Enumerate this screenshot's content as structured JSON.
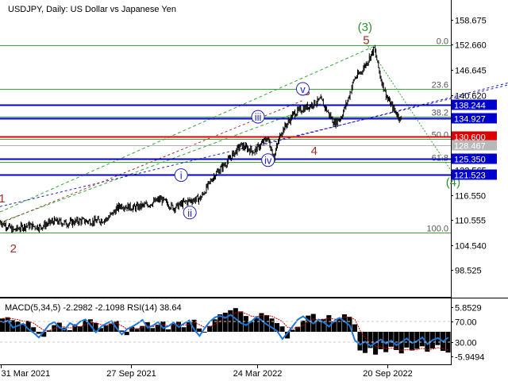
{
  "header": {
    "title": "USDJPY, Daily:  US Dollar vs Japanese Yen"
  },
  "colors": {
    "candle": "#000000",
    "grid": "#c8c8c8",
    "blue_level": "#0000cc",
    "red_level": "#dd0000",
    "fib_line": "#33aa33",
    "wave_green": "#2f8f2f",
    "wave_red": "#a0302a",
    "wave_blue": "#2020c0",
    "macd_hist": "#000000",
    "macd_signal": "#cc0000",
    "rsi_line": "#1e78dc"
  },
  "chart_data": [
    {
      "type": "line",
      "title": "USDJPY, Daily:  US Dollar vs Japanese Yen",
      "symbol": "USDJPY",
      "timeframe": "Daily",
      "y_ticks": [
        "158.675",
        "152.660",
        "146.645",
        "140.620",
        "134.605",
        "128.580",
        "122.565",
        "116.550",
        "110.555",
        "104.540",
        "98.525"
      ],
      "ylim": [
        92.5,
        161.5
      ],
      "x_ticks": [
        "31 Mar 2021",
        "27 Sep 2021",
        "24 Mar 2022",
        "20 Sep 2022"
      ],
      "grid": false,
      "series": [
        {
          "x": [
            0,
            20,
            40,
            60,
            80,
            100,
            120,
            140,
            160,
            180,
            200,
            220,
            240,
            260,
            280,
            300,
            320,
            340,
            360,
            380,
            400,
            410,
            420,
            440,
            460,
            480,
            500,
            510,
            520,
            530,
            540,
            550,
            560,
            570,
            580,
            590,
            600
          ],
          "values": [
            110.2,
            108.1,
            109.3,
            108.9,
            110.3,
            109.8,
            110.4,
            110.2,
            110.8,
            114.1,
            113.5,
            114.2,
            115.6,
            113.5,
            115.1,
            115.8,
            121.2,
            124.6,
            128.5,
            127.0,
            130.3,
            125.8,
            131.5,
            136.2,
            137.8,
            139.4,
            133.8,
            135.2,
            139.2,
            144.5,
            146.1,
            148.8,
            151.8,
            144.3,
            139.6,
            136.9,
            134.6
          ]
        }
      ],
      "levels": [
        {
          "value": 138.244,
          "label": "138.244",
          "color": "blue"
        },
        {
          "value": 134.927,
          "label": "134.927",
          "color": "blue"
        },
        {
          "value": 130.6,
          "label": "130.600",
          "color": "red"
        },
        {
          "value": 128.467,
          "label": "128.467",
          "color": "gray"
        },
        {
          "value": 125.35,
          "label": "125.350",
          "color": "blue"
        },
        {
          "value": 121.523,
          "label": "121.523",
          "color": "blue"
        }
      ],
      "fibonacci": [
        {
          "label": "0.0",
          "value": 152.6
        },
        {
          "label": "23.6",
          "value": 142.0
        },
        {
          "label": "38.2",
          "value": 135.3
        },
        {
          "label": "50.0",
          "value": 130.0
        },
        {
          "label": "61.8",
          "value": 124.6
        },
        {
          "label": "100.0",
          "value": 107.6
        }
      ],
      "wave_labels": [
        {
          "text": "(3)",
          "x": 546,
          "y": 156.0,
          "style": "green"
        },
        {
          "text": "5",
          "x": 548,
          "y": 152.8,
          "style": "red"
        },
        {
          "text": "3",
          "x": 459,
          "y": 140.5,
          "style": "red"
        },
        {
          "text": "4",
          "x": 470,
          "y": 126.2,
          "style": "red"
        },
        {
          "text": "2",
          "x": 20,
          "y": 102.8,
          "style": "red"
        },
        {
          "text": "1",
          "x": 3,
          "y": 114.8,
          "style": "red"
        },
        {
          "text": "(4)",
          "x": 678,
          "y": 118.7,
          "style": "green"
        },
        {
          "text": "i",
          "x": 271,
          "y": 120.6,
          "style": "blue"
        },
        {
          "text": "ii",
          "x": 284,
          "y": 111.6,
          "style": "blue"
        },
        {
          "text": "iii",
          "x": 386,
          "y": 134.6,
          "style": "blue"
        },
        {
          "text": "iv",
          "x": 401,
          "y": 124.2,
          "style": "blue"
        },
        {
          "text": "v",
          "x": 453,
          "y": 141.3,
          "style": "blue"
        }
      ],
      "trend_lines": [
        {
          "from": [
            0,
            112.5
          ],
          "to": [
            560,
            152.3
          ],
          "style": "green-dash"
        },
        {
          "from": [
            0,
            110.0
          ],
          "to": [
            480,
            138.5
          ],
          "style": "green-dash"
        },
        {
          "from": [
            0,
            113.8
          ],
          "to": [
            760,
            143.0
          ],
          "style": "blue-dash"
        },
        {
          "from": [
            0,
            109.8
          ],
          "to": [
            452,
            139.2
          ],
          "style": "red-dash"
        },
        {
          "from": [
            390,
            128.5
          ],
          "to": [
            760,
            143.5
          ],
          "style": "blue-dash"
        },
        {
          "from": [
            548,
            153.0
          ],
          "to": [
            680,
            121.2
          ],
          "style": "green-dot"
        }
      ]
    },
    {
      "type": "bar",
      "title": "MACD(5,34,5) -2.2982 -2.1098 RSI(14) 38.64",
      "indicator": "MACD(5,34,5)",
      "macd_value": "-2.2982",
      "signal_value": "-2.1098",
      "rsi_label": "RSI(14)",
      "rsi_value": "38.64",
      "y_ticks_left": [
        "5.8529",
        "-5.9494"
      ],
      "y_ticks_right": [
        "70.00",
        "30.00"
      ],
      "ylim": [
        -6.5,
        6.5
      ],
      "grid": false,
      "series": [
        {
          "name": "MACD",
          "values": [
            3.2,
            3.5,
            2.8,
            2.5,
            1.9,
            2.6,
            1.1,
            -0.5,
            -1.2,
            0.3,
            1.6,
            2.2,
            1.0,
            0.4,
            1.8,
            1.3,
            2.8,
            3.0,
            2.1,
            0.9,
            1.5,
            2.0,
            2.6,
            0.3,
            -0.8,
            1.2,
            0.7,
            1.4,
            2.3,
            0.9,
            1.7,
            2.5,
            0.6,
            1.9,
            2.4,
            1.1,
            2.3,
            2.9,
            0.8,
            -0.2,
            1.4,
            3.0,
            4.2,
            4.6,
            5.2,
            5.7,
            4.9,
            3.8,
            2.6,
            3.4,
            4.5,
            4.0,
            3.2,
            2.1,
            1.3,
            -1.6,
            0.5,
            1.2,
            2.7,
            3.9,
            4.3,
            2.6,
            3.1,
            4.0,
            2.5,
            3.3,
            4.2,
            3.6,
            1.8,
            -4.5,
            -5.1,
            -3.9,
            -5.5,
            -4.2,
            -4.9,
            -3.6,
            -4.4,
            -5.2,
            -3.8,
            -4.5,
            -4.1,
            -3.5,
            -4.8,
            -4.0,
            -3.2,
            -4.6,
            -5.0
          ]
        },
        {
          "name": "RSI",
          "values": [
            68,
            72,
            58,
            62,
            66,
            55,
            48,
            39,
            51,
            64,
            69,
            58,
            54,
            67,
            61,
            70,
            74,
            62,
            49,
            60,
            66,
            71,
            57,
            45,
            55,
            60,
            66,
            73,
            58,
            62,
            69,
            57,
            61,
            68,
            59,
            66,
            72,
            54,
            42,
            57,
            70,
            78,
            81,
            77,
            83,
            75,
            67,
            63,
            70,
            79,
            72,
            64,
            58,
            51,
            36,
            48,
            61,
            74,
            80,
            72,
            66,
            74,
            68,
            60,
            71,
            77,
            70,
            62,
            33,
            25,
            31,
            22,
            29,
            35,
            27,
            33,
            24,
            30,
            37,
            28,
            32,
            39,
            26,
            34,
            38,
            31,
            39
          ]
        }
      ]
    }
  ]
}
